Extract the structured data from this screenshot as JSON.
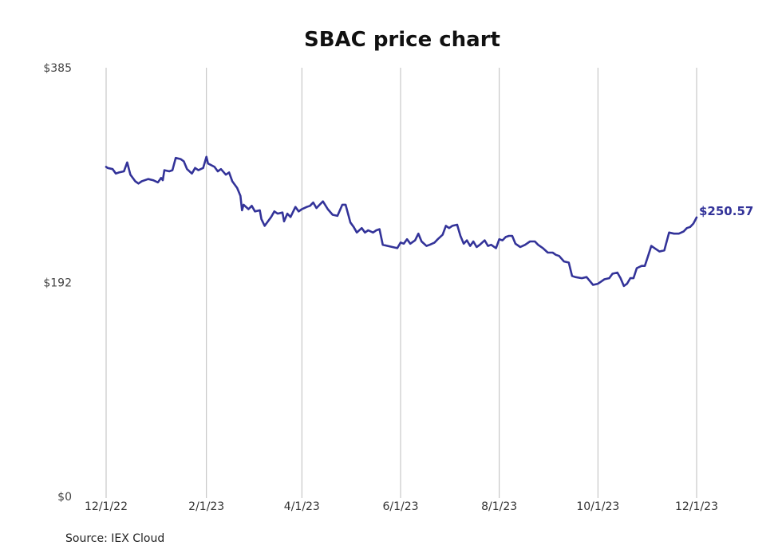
{
  "chart_data": {
    "type": "line",
    "title": "SBAC price chart",
    "y_tick_labels": [
      "$385",
      "$192",
      "$0"
    ],
    "y_ticks": [
      385,
      192,
      0
    ],
    "ylim": [
      0,
      385
    ],
    "x_tick_labels": [
      "12/1/22",
      "2/1/23",
      "4/1/23",
      "6/1/23",
      "8/1/23",
      "10/1/23",
      "12/1/23"
    ],
    "x_ticks": [
      "2022-12-01",
      "2023-02-01",
      "2023-04-01",
      "2023-06-01",
      "2023-08-01",
      "2023-10-01",
      "2023-12-01"
    ],
    "grid": "vertical",
    "line_color": "#333399",
    "last_value_label": "$250.57",
    "source": "Source: IEX Cloud",
    "points": [
      [
        "2022-12-01",
        296
      ],
      [
        "2022-12-02",
        295
      ],
      [
        "2022-12-05",
        294
      ],
      [
        "2022-12-07",
        290
      ],
      [
        "2022-12-09",
        291
      ],
      [
        "2022-12-12",
        292
      ],
      [
        "2022-12-14",
        300
      ],
      [
        "2022-12-16",
        289
      ],
      [
        "2022-12-19",
        283
      ],
      [
        "2022-12-21",
        281
      ],
      [
        "2022-12-23",
        283
      ],
      [
        "2022-12-27",
        285
      ],
      [
        "2022-12-30",
        284
      ],
      [
        "2023-01-02",
        282
      ],
      [
        "2023-01-04",
        286
      ],
      [
        "2023-01-05",
        284
      ],
      [
        "2023-01-06",
        293
      ],
      [
        "2023-01-09",
        292
      ],
      [
        "2023-01-11",
        293
      ],
      [
        "2023-01-13",
        304
      ],
      [
        "2023-01-16",
        303
      ],
      [
        "2023-01-18",
        301
      ],
      [
        "2023-01-20",
        294
      ],
      [
        "2023-01-23",
        290
      ],
      [
        "2023-01-25",
        295
      ],
      [
        "2023-01-27",
        293
      ],
      [
        "2023-01-30",
        295
      ],
      [
        "2023-02-01",
        305
      ],
      [
        "2023-02-02",
        299
      ],
      [
        "2023-02-06",
        296
      ],
      [
        "2023-02-08",
        292
      ],
      [
        "2023-02-10",
        294
      ],
      [
        "2023-02-13",
        289
      ],
      [
        "2023-02-15",
        291
      ],
      [
        "2023-02-17",
        283
      ],
      [
        "2023-02-20",
        277
      ],
      [
        "2023-02-22",
        270
      ],
      [
        "2023-02-23",
        257
      ],
      [
        "2023-02-24",
        262
      ],
      [
        "2023-02-27",
        258
      ],
      [
        "2023-03-01",
        261
      ],
      [
        "2023-03-03",
        256
      ],
      [
        "2023-03-06",
        257
      ],
      [
        "2023-03-07",
        249
      ],
      [
        "2023-03-09",
        243
      ],
      [
        "2023-03-13",
        251
      ],
      [
        "2023-03-15",
        256
      ],
      [
        "2023-03-17",
        254
      ],
      [
        "2023-03-20",
        255
      ],
      [
        "2023-03-21",
        247
      ],
      [
        "2023-03-23",
        254
      ],
      [
        "2023-03-25",
        251
      ],
      [
        "2023-03-28",
        260
      ],
      [
        "2023-03-30",
        256
      ],
      [
        "2023-04-01",
        258
      ],
      [
        "2023-04-04",
        260
      ],
      [
        "2023-04-06",
        261
      ],
      [
        "2023-04-08",
        264
      ],
      [
        "2023-04-10",
        259
      ],
      [
        "2023-04-12",
        262
      ],
      [
        "2023-04-14",
        265
      ],
      [
        "2023-04-17",
        258
      ],
      [
        "2023-04-20",
        253
      ],
      [
        "2023-04-23",
        252
      ],
      [
        "2023-04-26",
        262
      ],
      [
        "2023-04-28",
        262
      ],
      [
        "2023-05-01",
        246
      ],
      [
        "2023-05-03",
        242
      ],
      [
        "2023-05-05",
        237
      ],
      [
        "2023-05-08",
        241
      ],
      [
        "2023-05-10",
        237
      ],
      [
        "2023-05-12",
        239
      ],
      [
        "2023-05-15",
        237
      ],
      [
        "2023-05-17",
        239
      ],
      [
        "2023-05-19",
        240
      ],
      [
        "2023-05-21",
        226
      ],
      [
        "2023-05-24",
        225
      ],
      [
        "2023-05-27",
        224
      ],
      [
        "2023-05-30",
        223
      ],
      [
        "2023-06-01",
        228
      ],
      [
        "2023-06-03",
        227
      ],
      [
        "2023-06-05",
        231
      ],
      [
        "2023-06-07",
        227
      ],
      [
        "2023-06-10",
        230
      ],
      [
        "2023-06-12",
        236
      ],
      [
        "2023-06-14",
        229
      ],
      [
        "2023-06-17",
        225
      ],
      [
        "2023-06-19",
        226
      ],
      [
        "2023-06-22",
        228
      ],
      [
        "2023-06-24",
        231
      ],
      [
        "2023-06-27",
        235
      ],
      [
        "2023-06-29",
        243
      ],
      [
        "2023-07-01",
        241
      ],
      [
        "2023-07-03",
        243
      ],
      [
        "2023-07-06",
        244
      ],
      [
        "2023-07-08",
        234
      ],
      [
        "2023-07-10",
        227
      ],
      [
        "2023-07-12",
        230
      ],
      [
        "2023-07-14",
        225
      ],
      [
        "2023-07-16",
        229
      ],
      [
        "2023-07-18",
        224
      ],
      [
        "2023-07-20",
        226
      ],
      [
        "2023-07-23",
        230
      ],
      [
        "2023-07-25",
        225
      ],
      [
        "2023-07-27",
        226
      ],
      [
        "2023-07-30",
        223
      ],
      [
        "2023-08-01",
        231
      ],
      [
        "2023-08-03",
        230
      ],
      [
        "2023-08-05",
        233
      ],
      [
        "2023-08-07",
        234
      ],
      [
        "2023-08-09",
        234
      ],
      [
        "2023-08-11",
        227
      ],
      [
        "2023-08-14",
        224
      ],
      [
        "2023-08-17",
        226
      ],
      [
        "2023-08-20",
        229
      ],
      [
        "2023-08-23",
        229
      ],
      [
        "2023-08-25",
        226
      ],
      [
        "2023-08-28",
        223
      ],
      [
        "2023-08-31",
        219
      ],
      [
        "2023-09-03",
        219
      ],
      [
        "2023-09-05",
        217
      ],
      [
        "2023-09-07",
        216
      ],
      [
        "2023-09-10",
        211
      ],
      [
        "2023-09-13",
        210
      ],
      [
        "2023-09-15",
        198
      ],
      [
        "2023-09-17",
        197
      ],
      [
        "2023-09-21",
        196
      ],
      [
        "2023-09-24",
        197
      ],
      [
        "2023-09-28",
        190
      ],
      [
        "2023-10-01",
        191
      ],
      [
        "2023-10-03",
        193
      ],
      [
        "2023-10-05",
        195
      ],
      [
        "2023-10-08",
        196
      ],
      [
        "2023-10-10",
        200
      ],
      [
        "2023-10-13",
        201
      ],
      [
        "2023-10-15",
        196
      ],
      [
        "2023-10-17",
        189
      ],
      [
        "2023-10-19",
        191
      ],
      [
        "2023-10-21",
        196
      ],
      [
        "2023-10-23",
        196
      ],
      [
        "2023-10-25",
        205
      ],
      [
        "2023-10-28",
        207
      ],
      [
        "2023-10-30",
        207
      ],
      [
        "2023-11-01",
        216
      ],
      [
        "2023-11-03",
        225
      ],
      [
        "2023-11-05",
        223
      ],
      [
        "2023-11-08",
        220
      ],
      [
        "2023-11-11",
        221
      ],
      [
        "2023-11-14",
        237
      ],
      [
        "2023-11-17",
        236
      ],
      [
        "2023-11-20",
        236
      ],
      [
        "2023-11-23",
        238
      ],
      [
        "2023-11-25",
        241
      ],
      [
        "2023-11-27",
        242
      ],
      [
        "2023-11-29",
        245
      ],
      [
        "2023-12-01",
        250.57
      ]
    ]
  }
}
